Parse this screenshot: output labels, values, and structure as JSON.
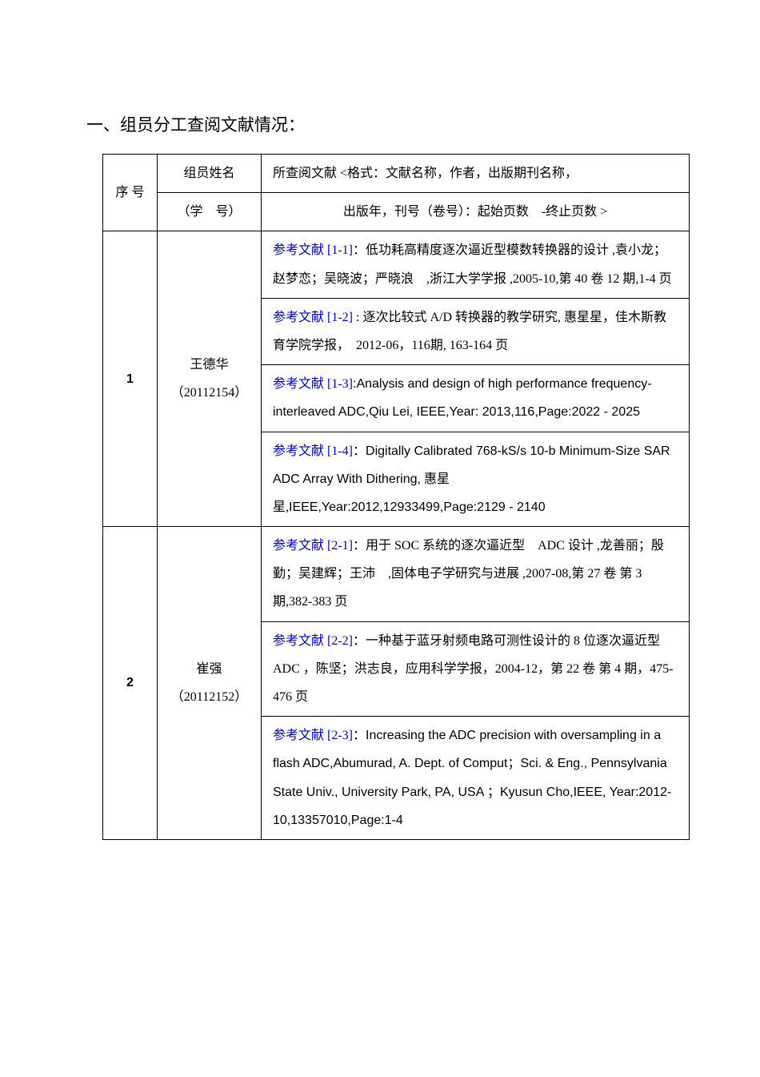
{
  "heading": "一、组员分工查阅文献情况：",
  "header": {
    "seq": "序 号",
    "name_line1": "组员姓名",
    "name_line2": "（学　号）",
    "ref_line1": "所查阅文献 <格式：文献名称，作者，出版期刊名称，",
    "ref_line2": "出版年，刊号（卷号）：起始页数　-终止页数 >"
  },
  "rows": [
    {
      "seq": "1",
      "name": "王德华",
      "id": "（20112154）",
      "refs": [
        {
          "link": "参考文献 [1-1]",
          "body": "：低功耗高精度逐次逼近型模数转换器的设计 ,袁小龙；赵梦恋；吴晓波；严晓浪　,浙江大学学报 ,2005-10,第 40 卷 12 期,1-4 页"
        },
        {
          "link": "参考文献 [1-2]",
          "body": " : 逐次比较式 A/D 转换器的教学研究, 惠星星，佳木斯教育学院学报，　2012-06，116期, 163-164 页"
        },
        {
          "link": "参考文献 [1-3]",
          "body_latin": ":Analysis and design of high performance frequency-interleaved ADC,Qiu Lei, IEEE,Year: 2013,116,Page:2022 - 2025"
        },
        {
          "link": "参考文献 [1-4]",
          "body_mixed_pre": "：",
          "body_latin": "Digitally Calibrated 768-kS/s 10-b Minimum-Size SAR ADC Array With Dithering,",
          "body_cn": " 惠星星,",
          "body_latin2": "IEEE,Year:2012,12933499,Page:2129 - 2140"
        }
      ]
    },
    {
      "seq": "2",
      "name": "崔强",
      "id": "（20112152）",
      "refs": [
        {
          "link": "参考文献 [2-1]",
          "body": "：用于 SOC 系统的逐次逼近型　ADC 设计 ,龙善丽；殷勤；吴建辉；王沛　,固体电子学研究与进展 ,2007-08,第 27 卷 第 3 期,382-383 页"
        },
        {
          "link": "参考文献 [2-2]",
          "body": "：一种基于蓝牙射频电路可测性设计的 8 位逐次逼近型 ADC ，陈坚；洪志良，应用科学学报，2004-12，第 22 卷 第 4 期，475-476 页"
        },
        {
          "link": "参考文献 [2-3]",
          "body_mixed_pre": "：",
          "body_latin": "Increasing the ADC precision with oversampling in a flash ADC,Abumurad, A. Dept. of Comput",
          "body_cn": "；",
          "body_latin2": "Sci. & Eng., Pennsylvania State Univ., University Park, PA, USA ",
          "body_cn2": "；",
          "body_latin3": "Kyusun Cho,IEEE, Year:2012-10,13357010,Page:1-4"
        }
      ]
    }
  ]
}
